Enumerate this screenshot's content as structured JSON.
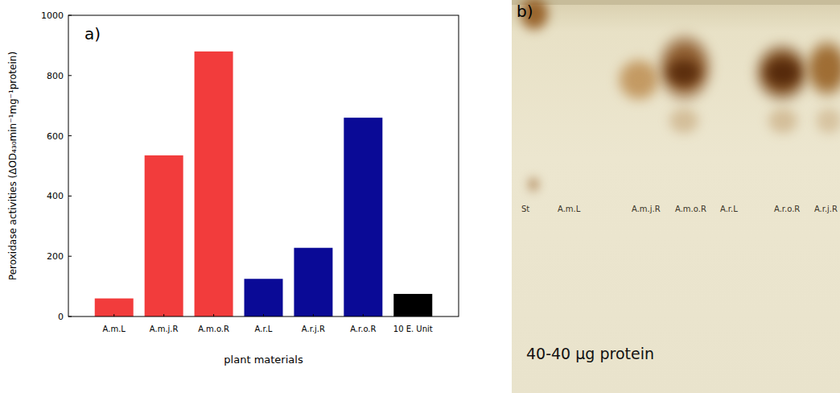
{
  "chart_data": {
    "type": "bar",
    "panel_label": "a)",
    "x_label": "plant materials",
    "y_label": "Peroxidase activities (ΔOD₄₃₀min⁻¹mg⁻¹protein)",
    "categories": [
      "A.m.L",
      "A.m.j.R",
      "A.m.o.R",
      "A.r.L",
      "A.r.j.R",
      "A.r.o.R",
      "10 E. Unit"
    ],
    "values": [
      60,
      535,
      880,
      125,
      228,
      660,
      75
    ],
    "colors": [
      "#f23c3c",
      "#f23c3c",
      "#f23c3c",
      "#0a0a96",
      "#0a0a96",
      "#0a0a96",
      "#000000"
    ],
    "ylim": [
      0,
      1000
    ],
    "yticks": [
      0,
      200,
      400,
      600,
      800,
      1000
    ],
    "grid": false
  },
  "gel": {
    "panel_label": "b)",
    "lanes": [
      "St",
      "A.m.L",
      "A.m.j.R",
      "A.m.o.R",
      "A.r.L",
      "A.r.o.R",
      "A.r.j.R"
    ],
    "caption": "40-40 μg protein"
  }
}
